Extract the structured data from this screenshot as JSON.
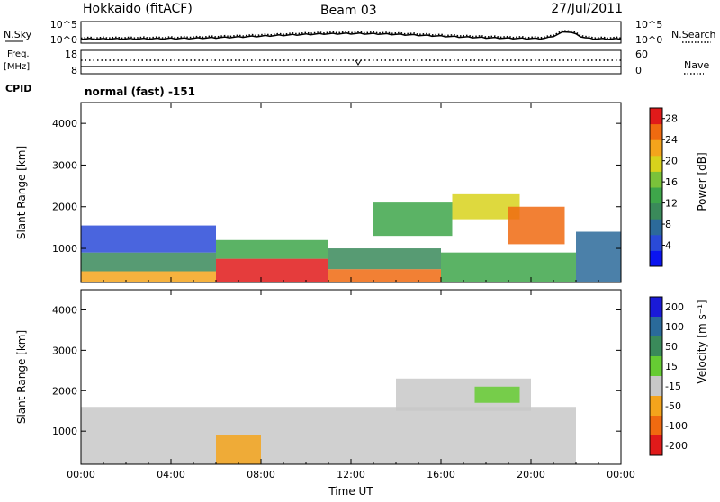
{
  "header": {
    "station": "Hokkaido (fitACF)",
    "beam": "Beam 03",
    "date": "27/Jul/2011"
  },
  "summary_panel": {
    "nsky_label": "N.Sky",
    "nsearch_label": "N.Search",
    "freq_label_line1": "Freq.",
    "freq_label_line2": "[MHz]",
    "nave_label": "Nave",
    "cpid_label": "CPID",
    "noise_ticks_left": [
      "10^5",
      "10^0"
    ],
    "noise_ticks_right": [
      "10^5",
      "10^0"
    ],
    "freq_ticks": [
      "18",
      "8"
    ],
    "nave_ticks": [
      "60",
      "0"
    ],
    "mode_text": "normal (fast) -151"
  },
  "chart_data": [
    {
      "type": "heatmap",
      "name": "power",
      "ylabel": "Slant Range [km]",
      "xlabel": "",
      "x_ticks": [
        "00:00",
        "04:00",
        "08:00",
        "12:00",
        "16:00",
        "20:00",
        "00:00"
      ],
      "y_ticks": [
        1000,
        2000,
        3000,
        4000
      ],
      "x_range_hours": [
        0,
        24
      ],
      "y_range_km": [
        180,
        4500
      ],
      "colorbar_label": "Power [dB]",
      "colorbar_ticks": [
        4,
        8,
        12,
        16,
        20,
        24,
        28
      ],
      "colorbar_range": [
        0,
        30
      ],
      "colorbar_colors": [
        "#0a14f0",
        "#2a4ad8",
        "#2c6a9a",
        "#3a8a5a",
        "#3ea64a",
        "#7ac23a",
        "#d8d21c",
        "#f4a41c",
        "#f06a10",
        "#e01a1a"
      ],
      "regions": [
        {
          "t0": 0.0,
          "t1": 6.0,
          "r0": 180,
          "r1": 450,
          "level": 22
        },
        {
          "t0": 0.0,
          "t1": 6.0,
          "r0": 450,
          "r1": 900,
          "level": 11
        },
        {
          "t0": 0.0,
          "t1": 6.0,
          "r0": 900,
          "r1": 1550,
          "level": 5
        },
        {
          "t0": 6.0,
          "t1": 11.0,
          "r0": 180,
          "r1": 750,
          "level": 28
        },
        {
          "t0": 6.0,
          "t1": 11.0,
          "r0": 750,
          "r1": 1200,
          "level": 14
        },
        {
          "t0": 11.0,
          "t1": 16.0,
          "r0": 180,
          "r1": 500,
          "level": 24
        },
        {
          "t0": 11.0,
          "t1": 16.0,
          "r0": 500,
          "r1": 1000,
          "level": 10
        },
        {
          "t0": 13.0,
          "t1": 16.5,
          "r0": 1300,
          "r1": 2100,
          "level": 14
        },
        {
          "t0": 16.5,
          "t1": 19.5,
          "r0": 1700,
          "r1": 2300,
          "level": 20
        },
        {
          "t0": 19.0,
          "t1": 21.5,
          "r0": 1100,
          "r1": 2000,
          "level": 24
        },
        {
          "t0": 16.0,
          "t1": 22.0,
          "r0": 180,
          "r1": 900,
          "level": 12
        },
        {
          "t0": 22.0,
          "t1": 24.0,
          "r0": 180,
          "r1": 1400,
          "level": 6
        }
      ]
    },
    {
      "type": "heatmap",
      "name": "velocity",
      "ylabel": "Slant Range [km]",
      "xlabel": "Time UT",
      "x_ticks": [
        "00:00",
        "04:00",
        "08:00",
        "12:00",
        "16:00",
        "20:00",
        "00:00"
      ],
      "y_ticks": [
        1000,
        2000,
        3000,
        4000
      ],
      "x_range_hours": [
        0,
        24
      ],
      "y_range_km": [
        180,
        4500
      ],
      "colorbar_label": "Velocity [m s⁻¹]",
      "colorbar_ticks": [
        "200",
        "100",
        "50",
        "15",
        "-15",
        "-50",
        "-100",
        "-200"
      ],
      "colorbar_colors": [
        "#1a1ad8",
        "#2a6a9a",
        "#3a8a5a",
        "#66cc33",
        "#c8c8c8",
        "#f4a41c",
        "#f06a10",
        "#e01a1a"
      ],
      "regions": [
        {
          "t0": 0.0,
          "t1": 22.0,
          "r0": 180,
          "r1": 1600,
          "value": 0
        },
        {
          "t0": 6.0,
          "t1": 8.0,
          "r0": 180,
          "r1": 900,
          "value": -40
        },
        {
          "t0": 14.0,
          "t1": 20.0,
          "r0": 1500,
          "r1": 2300,
          "value": 0
        },
        {
          "t0": 17.5,
          "t1": 19.5,
          "r0": 1700,
          "r1": 2100,
          "value": 40
        }
      ]
    }
  ]
}
